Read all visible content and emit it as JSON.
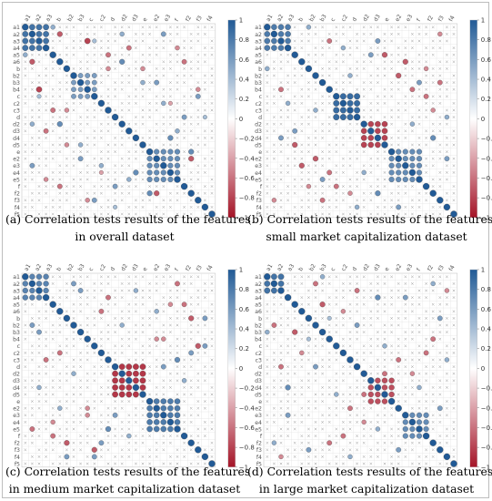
{
  "figure": {
    "panels": [
      {
        "letter": "(a)",
        "caption_line1": "Correlation tests results of the features",
        "caption_line2": "in overall dataset"
      },
      {
        "letter": "(b)",
        "caption_line1": "Correlation tests results of the features",
        "caption_line2": "small market capitalization dataset"
      },
      {
        "letter": "(c)",
        "caption_line1": "Correlation tests results of the features",
        "caption_line2": "in medium market capitalization dataset"
      },
      {
        "letter": "(d)",
        "caption_line1": "Correlation tests results of the features",
        "caption_line2": "in large market capitalization dataset"
      }
    ]
  },
  "chart_data": [
    {
      "type": "heatmap",
      "top_labels": [
        "a1",
        "a2",
        "a3",
        "b",
        "b2",
        "b3",
        "c",
        "c2",
        "d",
        "d2",
        "d3",
        "e",
        "e2",
        "e3",
        "f",
        "f2",
        "f3",
        "f4"
      ],
      "row_labels": [
        "a1",
        "a2",
        "a3",
        "a4",
        "a5",
        "a6",
        "b",
        "b2",
        "b3",
        "b4",
        "c",
        "c2",
        "c3",
        "d",
        "d2",
        "d3",
        "d4",
        "d5",
        "e",
        "e2",
        "e3",
        "e4",
        "e5",
        "f",
        "f2",
        "f3",
        "f4",
        "f5"
      ],
      "colorbar_ticks": [
        "1",
        "0.8",
        "0.6",
        "0.4",
        "0.2",
        "0",
        "−0.2",
        "−0.4",
        "−0.6",
        "−0.8",
        "−1"
      ],
      "colorbar_range": [
        -1,
        1
      ],
      "diagonal_value": 1,
      "blocks": [
        [
          0,
          3,
          0.85
        ],
        [
          7,
          10,
          0.6
        ],
        [
          18,
          22,
          0.7
        ]
      ],
      "cells": [
        [
          0,
          4,
          0.5
        ],
        [
          1,
          5,
          -0.7
        ],
        [
          2,
          10,
          0.4
        ],
        [
          4,
          12,
          -0.6
        ],
        [
          5,
          14,
          0.7
        ],
        [
          6,
          17,
          -0.5
        ],
        [
          8,
          19,
          0.6
        ],
        [
          9,
          2,
          -0.8
        ],
        [
          11,
          20,
          0.5
        ],
        [
          12,
          6,
          -0.5
        ],
        [
          13,
          23,
          0.6
        ],
        [
          15,
          3,
          -0.6
        ],
        [
          16,
          21,
          0.7
        ],
        [
          17,
          8,
          0.5
        ],
        [
          19,
          24,
          -0.7
        ],
        [
          20,
          1,
          0.6
        ],
        [
          21,
          11,
          -0.4
        ],
        [
          22,
          15,
          0.5
        ],
        [
          23,
          5,
          -0.6
        ],
        [
          24,
          18,
          0.7
        ],
        [
          25,
          9,
          -0.5
        ],
        [
          26,
          13,
          0.4
        ],
        [
          3,
          22,
          -0.5
        ],
        [
          10,
          25,
          0.6
        ],
        [
          14,
          1,
          0.5
        ]
      ]
    },
    {
      "type": "heatmap",
      "top_labels": [
        "a1",
        "a2",
        "a3",
        "b",
        "b2",
        "b3",
        "c",
        "c2",
        "d",
        "d2",
        "d3",
        "e",
        "e2",
        "e3",
        "f",
        "f2",
        "f3",
        "f4"
      ],
      "row_labels": [
        "a1",
        "a2",
        "a3",
        "a4",
        "a5",
        "a6",
        "b",
        "b2",
        "b3",
        "b4",
        "c",
        "c2",
        "c3",
        "d",
        "d2",
        "d3",
        "d4",
        "d5",
        "e",
        "e2",
        "e3",
        "e4",
        "e5",
        "f",
        "f2",
        "f3",
        "f4",
        "f5"
      ],
      "colorbar_ticks": [
        "1",
        "0.8",
        "0.6",
        "0.4",
        "0.2",
        "0",
        "−0.2",
        "−0.4",
        "−0.6",
        "−0.8",
        "−1"
      ],
      "colorbar_range": [
        -1,
        1
      ],
      "diagonal_value": 1,
      "blocks": [
        [
          0,
          3,
          0.8
        ],
        [
          10,
          13,
          0.9
        ],
        [
          14,
          17,
          -0.8
        ],
        [
          18,
          22,
          0.7
        ]
      ],
      "cells": [
        [
          0,
          6,
          0.5
        ],
        [
          2,
          9,
          -0.6
        ],
        [
          4,
          15,
          0.6
        ],
        [
          5,
          20,
          -0.7
        ],
        [
          7,
          12,
          0.5
        ],
        [
          8,
          25,
          -0.6
        ],
        [
          11,
          3,
          0.6
        ],
        [
          12,
          24,
          -0.5
        ],
        [
          16,
          2,
          0.6
        ],
        [
          19,
          7,
          -0.7
        ],
        [
          21,
          14,
          0.5
        ],
        [
          23,
          10,
          -0.6
        ],
        [
          24,
          16,
          0.7
        ],
        [
          25,
          1,
          -0.5
        ],
        [
          26,
          19,
          0.6
        ],
        [
          3,
          11,
          0.5
        ],
        [
          9,
          21,
          -0.6
        ],
        [
          13,
          26,
          0.5
        ],
        [
          17,
          4,
          -0.7
        ],
        [
          22,
          8,
          0.6
        ],
        [
          6,
          23,
          -0.5
        ]
      ]
    },
    {
      "type": "heatmap",
      "top_labels": [
        "a1",
        "a2",
        "a3",
        "b",
        "b2",
        "b3",
        "c",
        "c2",
        "d",
        "d2",
        "d3",
        "e",
        "e2",
        "e3",
        "f",
        "f2",
        "f3",
        "f4"
      ],
      "row_labels": [
        "a1",
        "a2",
        "a3",
        "a4",
        "a5",
        "a6",
        "b",
        "b2",
        "b3",
        "b4",
        "c",
        "c2",
        "c3",
        "d",
        "d2",
        "d3",
        "d4",
        "d5",
        "e",
        "e2",
        "e3",
        "e4",
        "e5",
        "f",
        "f2",
        "f3",
        "f4",
        "f5"
      ],
      "colorbar_ticks": [
        "1",
        "0.8",
        "0.6",
        "0.4",
        "0.2",
        "0",
        "−0.2",
        "−0.4",
        "−0.6",
        "−0.8",
        "−1"
      ],
      "colorbar_range": [
        -1,
        1
      ],
      "diagonal_value": 1,
      "blocks": [
        [
          0,
          3,
          0.75
        ],
        [
          13,
          17,
          -0.85
        ],
        [
          18,
          22,
          0.8
        ]
      ],
      "cells": [
        [
          1,
          7,
          0.6
        ],
        [
          3,
          12,
          -0.6
        ],
        [
          5,
          19,
          0.5
        ],
        [
          6,
          24,
          -0.7
        ],
        [
          8,
          2,
          0.6
        ],
        [
          9,
          20,
          -0.5
        ],
        [
          10,
          26,
          0.6
        ],
        [
          11,
          5,
          -0.6
        ],
        [
          12,
          22,
          0.7
        ],
        [
          19,
          9,
          -0.5
        ],
        [
          20,
          13,
          0.6
        ],
        [
          22,
          1,
          -0.6
        ],
        [
          23,
          15,
          0.5
        ],
        [
          25,
          10,
          -0.7
        ],
        [
          26,
          6,
          0.6
        ],
        [
          2,
          16,
          0.5
        ],
        [
          4,
          23,
          -0.6
        ],
        [
          7,
          14,
          0.5
        ],
        [
          21,
          4,
          -0.5
        ],
        [
          24,
          11,
          0.6
        ]
      ]
    },
    {
      "type": "heatmap",
      "top_labels": [
        "a1",
        "a2",
        "a3",
        "b",
        "b2",
        "b3",
        "c",
        "c2",
        "d",
        "d2",
        "d3",
        "e",
        "e2",
        "e3",
        "f",
        "f2",
        "f3",
        "f4"
      ],
      "row_labels": [
        "a1",
        "a2",
        "a3",
        "a4",
        "a5",
        "a6",
        "b",
        "b2",
        "b3",
        "b4",
        "c",
        "c2",
        "c3",
        "d",
        "d2",
        "d3",
        "d4",
        "d5",
        "e",
        "e2",
        "e3",
        "e4",
        "e5",
        "f",
        "f2",
        "f3",
        "f4",
        "f5"
      ],
      "colorbar_ticks": [
        "1",
        "0.8",
        "0.6",
        "0.4",
        "0.2",
        "0",
        "−0.2",
        "−0.4",
        "−0.6",
        "−0.8",
        "−1"
      ],
      "colorbar_range": [
        -1,
        1
      ],
      "diagonal_value": 1,
      "blocks": [
        [
          0,
          2,
          0.85
        ],
        [
          15,
          18,
          -0.75
        ],
        [
          20,
          23,
          0.7
        ]
      ],
      "cells": [
        [
          0,
          8,
          0.5
        ],
        [
          2,
          13,
          -0.6
        ],
        [
          3,
          20,
          0.6
        ],
        [
          5,
          11,
          -0.5
        ],
        [
          6,
          25,
          0.6
        ],
        [
          8,
          4,
          -0.7
        ],
        [
          10,
          17,
          0.5
        ],
        [
          11,
          23,
          -0.6
        ],
        [
          13,
          7,
          0.6
        ],
        [
          14,
          21,
          -0.5
        ],
        [
          16,
          3,
          0.7
        ],
        [
          19,
          12,
          -0.6
        ],
        [
          22,
          16,
          0.5
        ],
        [
          24,
          9,
          -0.6
        ],
        [
          25,
          19,
          0.6
        ],
        [
          26,
          2,
          -0.5
        ],
        [
          1,
          24,
          0.5
        ],
        [
          7,
          1,
          -0.6
        ],
        [
          12,
          26,
          0.5
        ],
        [
          17,
          14,
          -0.6
        ],
        [
          9,
          6,
          0.4
        ]
      ]
    }
  ]
}
